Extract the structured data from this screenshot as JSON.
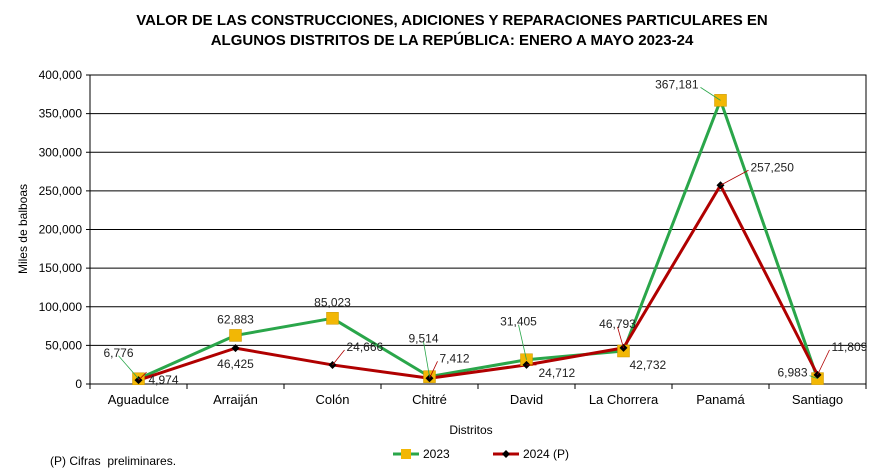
{
  "chart_data": {
    "type": "line",
    "title_line1": "VALOR DE LAS CONSTRUCCIONES, ADICIONES Y REPARACIONES PARTICULARES EN",
    "title_line2": "ALGUNOS DISTRITOS DE LA REPÚBLICA: ENERO A MAYO 2023-24",
    "xlabel": "Distritos",
    "ylabel": "Miles de balboas",
    "ylim": [
      0,
      400000
    ],
    "yticks": [
      "0",
      "50,000",
      "100,000",
      "150,000",
      "200,000",
      "250,000",
      "300,000",
      "350,000",
      "400,000"
    ],
    "categories": [
      "Aguadulce",
      "Arraiján",
      "Colón",
      "Chitré",
      "David",
      "La Chorrera",
      "Panamá",
      "Santiago"
    ],
    "series": [
      {
        "name": "2023",
        "color": "#2aa64a",
        "marker_color": "#f2b705",
        "values": [
          6776,
          62883,
          85023,
          9514,
          31405,
          42732,
          367181,
          6983
        ],
        "labels": [
          "6,776",
          "62,883",
          "85,023",
          "9,514",
          "31,405",
          "42,732",
          "367,181",
          "6,983"
        ]
      },
      {
        "name": "2024 (P)",
        "color": "#b00000",
        "marker_color": "#000000",
        "values": [
          4974,
          46425,
          24666,
          7412,
          24712,
          46793,
          257250,
          11809
        ],
        "labels": [
          "4,974",
          "46,425",
          "24,666",
          "7,412",
          "24,712",
          "46,793",
          "257,250",
          "11,809"
        ]
      }
    ],
    "grid": true,
    "legend_position": "bottom"
  },
  "footnote": "(P) Cifras  preliminares."
}
